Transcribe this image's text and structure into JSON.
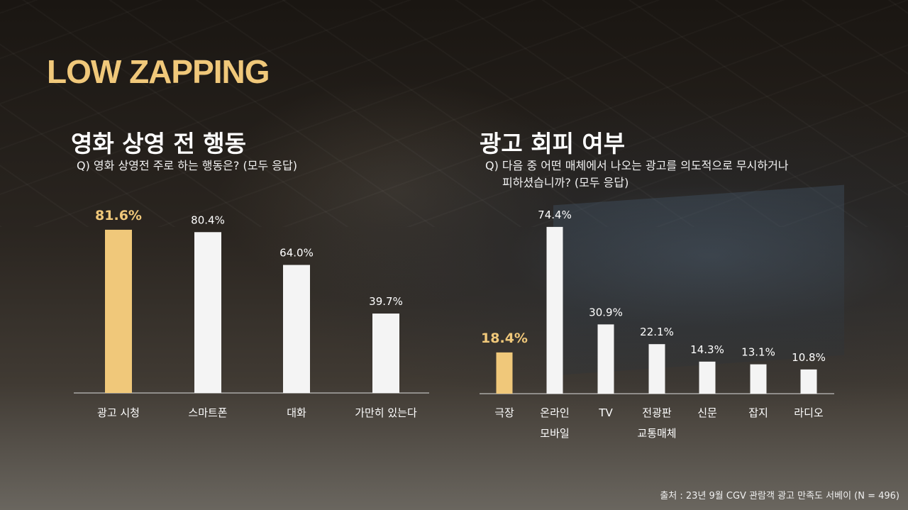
{
  "title": "LOW ZAPPING",
  "left": {
    "heading": "영화 상영 전 행동",
    "question": "Q) 영화 상영전 주로 하는 행동은? (모두 응답)"
  },
  "right": {
    "heading": "광고 회피 여부",
    "question_line1": "Q) 다음 중 어떤 매체에서 나오는 광고를 의도적으로 무시하거나",
    "question_line2": "피하셨습니까? (모두 응답)"
  },
  "source": "출처 : 23년 9월 CGV 관람객 광고 만족도 서베이 (N = 496)",
  "colors": {
    "highlight": "#f0c87a",
    "bar": "#f4f4f4",
    "text": "#ffffff"
  },
  "chart_data": [
    {
      "type": "bar",
      "title": "영화 상영 전 행동",
      "categories": [
        [
          "광고 시청"
        ],
        [
          "스마트폰"
        ],
        [
          "대화"
        ],
        [
          "가만히 있는다"
        ]
      ],
      "values": [
        81.6,
        80.4,
        64.0,
        39.7
      ],
      "value_labels": [
        "81.6%",
        "80.4%",
        "64.0%",
        "39.7%"
      ],
      "highlight_index": 0,
      "ylim": [
        0,
        100
      ]
    },
    {
      "type": "bar",
      "title": "광고 회피 여부",
      "categories": [
        [
          "극장"
        ],
        [
          "온라인",
          "모바일"
        ],
        [
          "TV"
        ],
        [
          "전광판",
          "교통매체"
        ],
        [
          "신문"
        ],
        [
          "잡지"
        ],
        [
          "라디오"
        ]
      ],
      "values": [
        18.4,
        74.4,
        30.9,
        22.1,
        14.3,
        13.1,
        10.8
      ],
      "value_labels": [
        "18.4%",
        "74.4%",
        "30.9%",
        "22.1%",
        "14.3%",
        "13.1%",
        "10.8%"
      ],
      "highlight_index": 0,
      "ylim": [
        0,
        100
      ]
    }
  ]
}
